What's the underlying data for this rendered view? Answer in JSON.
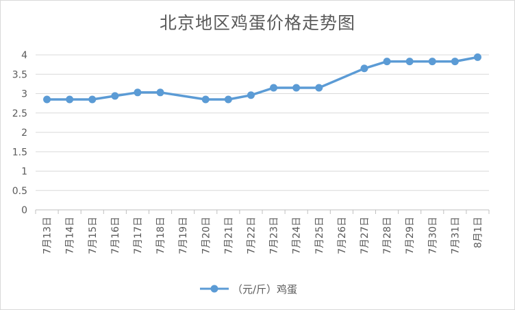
{
  "chart_data": {
    "type": "line",
    "title": "北京地区鸡蛋价格走势图",
    "categories": [
      "7月13日",
      "7月14日",
      "7月15日",
      "7月16日",
      "7月17日",
      "7月18日",
      "7月19日",
      "7月20日",
      "7月21日",
      "7月22日",
      "7月23日",
      "7月24日",
      "7月25日",
      "7月26日",
      "7月27日",
      "7月28日",
      "7月29日",
      "7月30日",
      "7月31日",
      "8月1日"
    ],
    "series": [
      {
        "name": "（元/斤）鸡蛋",
        "color": "#5b9bd5",
        "values": [
          2.85,
          2.85,
          2.85,
          2.94,
          3.03,
          3.03,
          null,
          2.85,
          2.85,
          2.96,
          3.15,
          3.15,
          3.15,
          null,
          3.65,
          3.83,
          3.83,
          3.83,
          3.83,
          3.94
        ]
      }
    ],
    "ylim": [
      0,
      4
    ],
    "yticks": [
      "0",
      "0.5",
      "1",
      "1.5",
      "2",
      "2.5",
      "3",
      "3.5",
      "4"
    ],
    "grid": true,
    "legend": "bottom"
  }
}
